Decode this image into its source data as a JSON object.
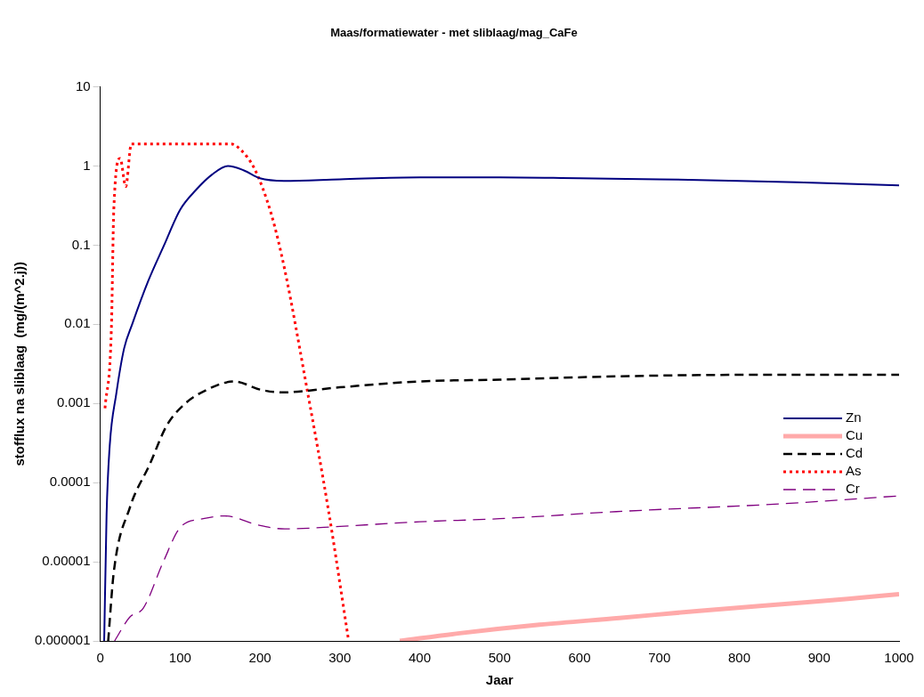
{
  "chart_data": {
    "type": "line",
    "title": "Maas/formatiewater - met sliblaag/mag_CaFe",
    "xlabel": "Jaar",
    "ylabel": "stofflux na sliblaag  (mg/(m^2.j))",
    "log": "y",
    "grid": false,
    "legend": "bottom right",
    "marker": "none",
    "xlim": [
      0,
      1000
    ],
    "xticks": [
      0,
      100,
      200,
      300,
      400,
      500,
      600,
      700,
      800,
      900,
      1000
    ],
    "ylim": [
      1e-06,
      10
    ],
    "yticks": [
      {
        "value": 1e-06,
        "label": "0.000001"
      },
      {
        "value": 1e-05,
        "label": "0.00001"
      },
      0.0001,
      0.001,
      0.01,
      0.1,
      1,
      10
    ],
    "series": [
      {
        "name": "Zn",
        "color": "#000080",
        "line_style": "solid",
        "x": [
          5,
          8,
          12,
          20,
          30,
          40,
          60,
          80,
          100,
          120,
          140,
          160,
          180,
          200,
          230,
          300,
          400,
          500,
          600,
          700,
          800,
          900,
          1000
        ],
        "values": [
          1e-06,
          4e-05,
          0.0003,
          0.0013,
          0.005,
          0.01,
          0.035,
          0.1,
          0.28,
          0.5,
          0.78,
          1,
          0.88,
          0.7,
          0.65,
          0.68,
          0.72,
          0.72,
          0.7,
          0.68,
          0.65,
          0.61,
          0.57
        ]
      },
      {
        "name": "Cu",
        "color": "#ffaaaa",
        "line_style": "solid",
        "x": [
          375,
          450,
          550,
          650,
          750,
          850,
          936,
          1000
        ],
        "values": [
          1e-06,
          1.25e-06,
          1.6e-06,
          1.95e-06,
          2.4e-06,
          2.9e-06,
          3.4e-06,
          3.9e-06
        ]
      },
      {
        "name": "Cd",
        "color": "#000000",
        "line_style": "dashed",
        "x": [
          10,
          17,
          37,
          62,
          83,
          104,
          134,
          168,
          200,
          227,
          300,
          400,
          500,
          646,
          800,
          1000
        ],
        "values": [
          1e-06,
          7.4e-06,
          4.8e-05,
          0.00017,
          0.00052,
          0.00095,
          0.0015,
          0.0019,
          0.0015,
          0.00138,
          0.0016,
          0.0019,
          0.002,
          0.0022,
          0.0023,
          0.0023
        ]
      },
      {
        "name": "As",
        "color": "#ff0000",
        "line_style": "dotted",
        "x": [
          6,
          14,
          17,
          25,
          32,
          39,
          164,
          176,
          193,
          214,
          231,
          259,
          286,
          311
        ],
        "values": [
          0.00087,
          0.0087,
          0.28,
          1.25,
          0.55,
          1.9,
          1.9,
          1.6,
          0.93,
          0.25,
          0.049,
          0.0015,
          4.3e-05,
          1e-06
        ]
      },
      {
        "name": "Cr",
        "color": "#800080",
        "line_style": "dashed",
        "x": [
          18,
          37,
          54,
          79,
          100,
          129,
          156,
          198,
          231,
          300,
          400,
          500,
          646,
          852,
          1000
        ],
        "values": [
          1e-06,
          2e-06,
          2.6e-06,
          1e-05,
          2.7e-05,
          3.5e-05,
          3.8e-05,
          2.9e-05,
          2.6e-05,
          2.8e-05,
          3.2e-05,
          3.5e-05,
          4.3e-05,
          5.4e-05,
          6.8e-05
        ]
      }
    ]
  }
}
